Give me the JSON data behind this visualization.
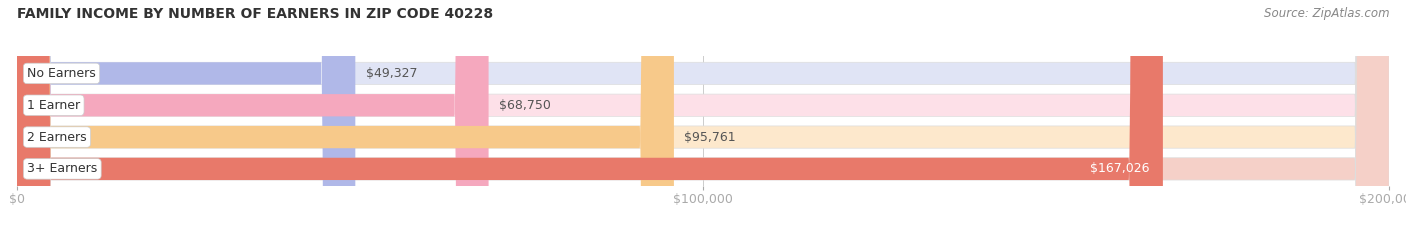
{
  "title": "FAMILY INCOME BY NUMBER OF EARNERS IN ZIP CODE 40228",
  "source": "Source: ZipAtlas.com",
  "categories": [
    "No Earners",
    "1 Earner",
    "2 Earners",
    "3+ Earners"
  ],
  "values": [
    49327,
    68750,
    95761,
    167026
  ],
  "bar_colors": [
    "#b0b8e8",
    "#f5a8be",
    "#f7c98a",
    "#e8796a"
  ],
  "bar_bg_colors": [
    "#e0e4f5",
    "#fde0e8",
    "#fde8cc",
    "#f5d0c8"
  ],
  "label_colors": [
    "#555555",
    "#555555",
    "#555555",
    "#555555"
  ],
  "value_labels": [
    "$49,327",
    "$68,750",
    "$95,761",
    "$167,026"
  ],
  "value_label_inside": [
    false,
    false,
    false,
    true
  ],
  "xlim": [
    0,
    200000
  ],
  "xticks": [
    0,
    100000,
    200000
  ],
  "xtick_labels": [
    "$0",
    "$100,000",
    "$200,000"
  ],
  "background_color": "#ffffff",
  "title_fontsize": 10,
  "source_fontsize": 8.5,
  "label_fontsize": 9,
  "value_fontsize": 9,
  "tick_fontsize": 9
}
